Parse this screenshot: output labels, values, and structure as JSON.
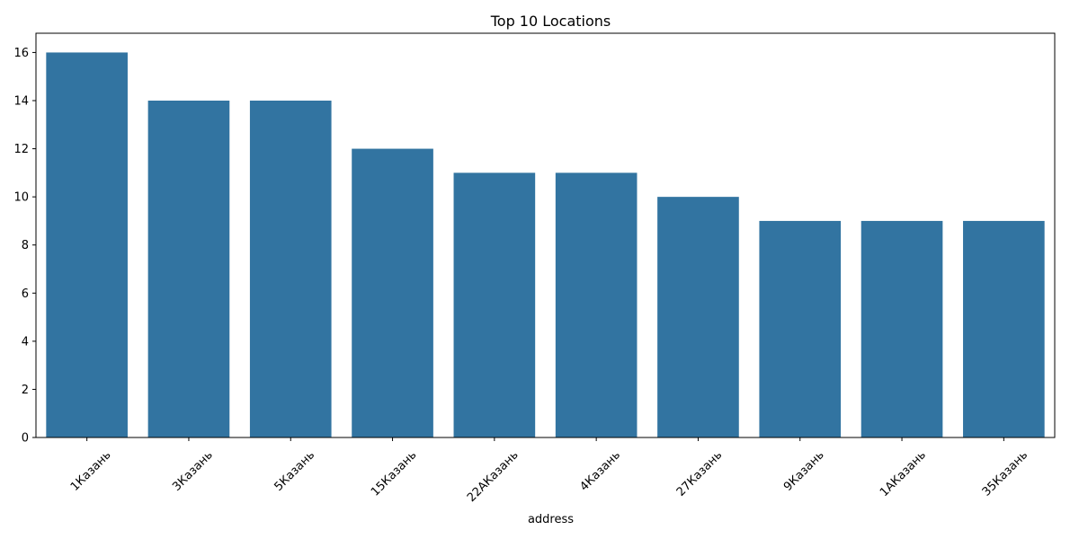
{
  "chart_data": {
    "type": "bar",
    "title": "Top 10 Locations",
    "xlabel": "address",
    "ylabel": "",
    "categories": [
      "1Казань",
      "3Казань",
      "5Казань",
      "15Казань",
      "22АКазань",
      "4Казань",
      "27Казань",
      "9Казань",
      "1АКазань",
      "35Казань"
    ],
    "values": [
      16,
      14,
      14,
      12,
      11,
      11,
      10,
      9,
      9,
      9
    ],
    "ylim": [
      0,
      16.8
    ],
    "yticks": [
      0,
      2,
      4,
      6,
      8,
      10,
      12,
      14,
      16
    ],
    "x_tick_rotation_deg": 45,
    "grid": false,
    "legend": "none",
    "bar_color": "#3274a1"
  }
}
